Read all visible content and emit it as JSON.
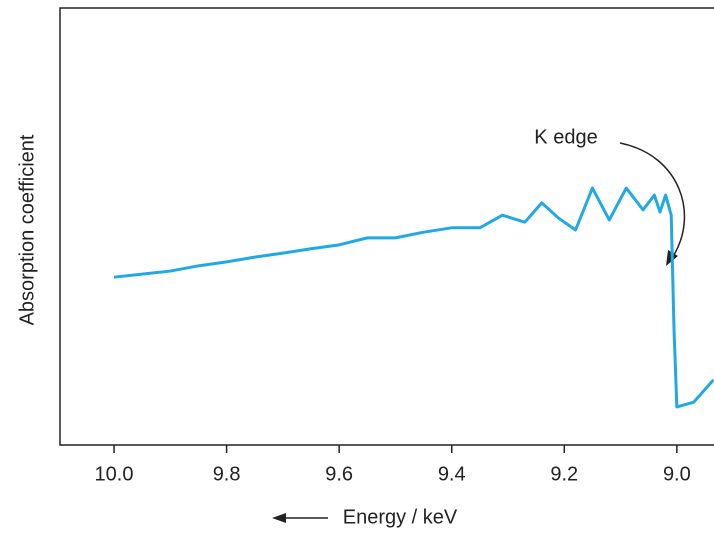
{
  "chart_data": {
    "type": "line",
    "x_label": "Energy / keV",
    "y_label": "Absorption coefficient",
    "annotation": "K edge",
    "x": [
      10.0,
      9.95,
      9.9,
      9.85,
      9.8,
      9.75,
      9.7,
      9.65,
      9.6,
      9.55,
      9.5,
      9.45,
      9.4,
      9.35,
      9.31,
      9.27,
      9.24,
      9.21,
      9.18,
      9.15,
      9.12,
      9.09,
      9.06,
      9.04,
      9.03,
      9.02,
      9.01,
      9.005,
      9.0,
      8.97,
      8.935
    ],
    "series": [
      {
        "name": "Absorption coefficient",
        "color": "#22a9e1",
        "values": [
          38.4,
          39.1,
          39.8,
          41.0,
          41.9,
          43.0,
          43.9,
          44.9,
          45.8,
          47.4,
          47.4,
          48.7,
          49.7,
          49.7,
          52.6,
          51.0,
          55.4,
          51.9,
          49.2,
          58.8,
          51.5,
          58.8,
          53.8,
          57.2,
          53.3,
          57.2,
          52.6,
          26.3,
          8.7,
          9.8,
          14.9
        ]
      }
    ],
    "xlim": [
      10.096,
      8.934
    ],
    "ylim": [
      0,
      100
    ],
    "xticks": [
      {
        "value": 10,
        "label": "10.0"
      },
      9.8,
      9.6,
      9.4,
      9.2,
      {
        "value": 9,
        "label": "9.0"
      }
    ]
  }
}
